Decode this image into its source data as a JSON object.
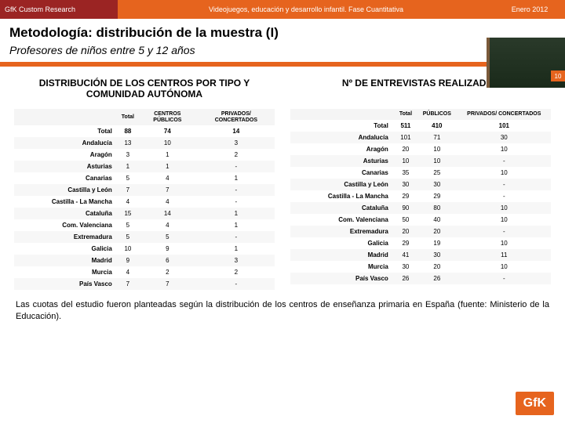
{
  "topbar": {
    "left": "GfK Custom Research",
    "mid": "Videojuegos, educación y desarrollo infantil. Fase Cuantitativa",
    "right": "Enero 2012"
  },
  "header": {
    "title": "Metodología: distribución de la muestra (I)",
    "subtitle": "Profesores de niños entre 5 y 12 años"
  },
  "pageNumber": "10",
  "left": {
    "title": "DISTRIBUCIÓN DE LOS CENTROS POR TIPO Y COMUNIDAD AUTÓNOMA",
    "columns": [
      "Total",
      "CENTROS PÚBLICOS",
      "PRIVADOS/ CONCERTADOS"
    ],
    "rows": [
      {
        "l": "Total",
        "c": [
          "88",
          "74",
          "14"
        ]
      },
      {
        "l": "Andalucía",
        "c": [
          "13",
          "10",
          "3"
        ]
      },
      {
        "l": "Aragón",
        "c": [
          "3",
          "1",
          "2"
        ]
      },
      {
        "l": "Asturias",
        "c": [
          "1",
          "1",
          "-"
        ]
      },
      {
        "l": "Canarias",
        "c": [
          "5",
          "4",
          "1"
        ]
      },
      {
        "l": "Castilla y León",
        "c": [
          "7",
          "7",
          "-"
        ]
      },
      {
        "l": "Castilla - La Mancha",
        "c": [
          "4",
          "4",
          "-"
        ]
      },
      {
        "l": "Cataluña",
        "c": [
          "15",
          "14",
          "1"
        ]
      },
      {
        "l": "Com. Valenciana",
        "c": [
          "5",
          "4",
          "1"
        ]
      },
      {
        "l": "Extremadura",
        "c": [
          "5",
          "5",
          "-"
        ]
      },
      {
        "l": "Galicia",
        "c": [
          "10",
          "9",
          "1"
        ]
      },
      {
        "l": "Madrid",
        "c": [
          "9",
          "6",
          "3"
        ]
      },
      {
        "l": "Murcia",
        "c": [
          "4",
          "2",
          "2"
        ]
      },
      {
        "l": "País Vasco",
        "c": [
          "7",
          "7",
          "-"
        ]
      }
    ]
  },
  "right": {
    "title": "Nº DE ENTREVISTAS REALIZADAS",
    "columns": [
      "Total",
      "PÚBLICOS",
      "PRIVADOS/ CONCERTADOS"
    ],
    "rows": [
      {
        "l": "Total",
        "c": [
          "511",
          "410",
          "101"
        ]
      },
      {
        "l": "Andalucía",
        "c": [
          "101",
          "71",
          "30"
        ]
      },
      {
        "l": "Aragón",
        "c": [
          "20",
          "10",
          "10"
        ]
      },
      {
        "l": "Asturias",
        "c": [
          "10",
          "10",
          "-"
        ]
      },
      {
        "l": "Canarias",
        "c": [
          "35",
          "25",
          "10"
        ]
      },
      {
        "l": "Castilla y León",
        "c": [
          "30",
          "30",
          "-"
        ]
      },
      {
        "l": "Castilla - La Mancha",
        "c": [
          "29",
          "29",
          "-"
        ]
      },
      {
        "l": "Cataluña",
        "c": [
          "90",
          "80",
          "10"
        ]
      },
      {
        "l": "Com. Valenciana",
        "c": [
          "50",
          "40",
          "10"
        ]
      },
      {
        "l": "Extremadura",
        "c": [
          "20",
          "20",
          "-"
        ]
      },
      {
        "l": "Galicia",
        "c": [
          "29",
          "19",
          "10"
        ]
      },
      {
        "l": "Madrid",
        "c": [
          "41",
          "30",
          "11"
        ]
      },
      {
        "l": "Murcia",
        "c": [
          "30",
          "20",
          "10"
        ]
      },
      {
        "l": "País Vasco",
        "c": [
          "26",
          "26",
          "-"
        ]
      }
    ]
  },
  "footnote": "Las cuotas del estudio fueron planteadas según la distribución de los centros de enseñanza primaria en España (fuente: Ministerio de la Educación).",
  "logo": "GfK",
  "colors": {
    "accent": "#e6641e",
    "darkred": "#9b2423"
  }
}
